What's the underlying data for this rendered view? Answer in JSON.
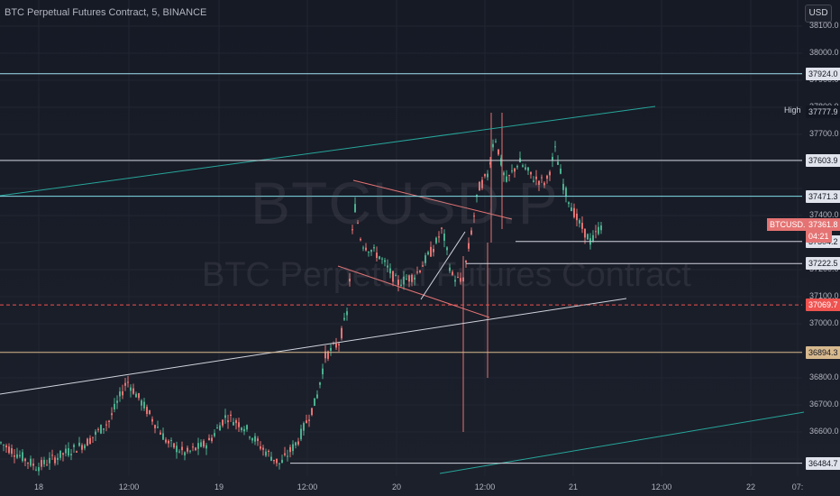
{
  "header": {
    "symbol_title": "BTC Perpetual Futures Contract, 5, BINANCE",
    "currency": "USD"
  },
  "watermark": {
    "ticker": "BTCUSD.P",
    "name": "BTC Perpetual Futures Contract"
  },
  "price_axis": {
    "ticks": [
      "38000.0",
      "37900.0",
      "37800.0",
      "37700.0",
      "37400.0",
      "37200.0",
      "37100.0",
      "37000.0",
      "36800.0",
      "36700.0",
      "36600.0",
      "38100.0"
    ]
  },
  "horizontal_levels": [
    {
      "price": 37924.0,
      "label": "37924.0",
      "color": "#a3e2f0"
    },
    {
      "price": 37603.9,
      "label": "37603.9",
      "color": "#d1d4dc"
    },
    {
      "price": 37471.3,
      "label": "37471.3",
      "color": "#80deea"
    },
    {
      "price": 37304.2,
      "label": "37304.2",
      "color": "#d1d4dc"
    },
    {
      "price": 37222.5,
      "label": "37222.5",
      "color": "#d1d4dc"
    },
    {
      "price": 37069.7,
      "label": "37069.7",
      "color": "#ef5350"
    },
    {
      "price": 36894.3,
      "label": "36894.3",
      "color": "#d7b98e"
    },
    {
      "price": 36484.7,
      "label": "36484.7",
      "color": "#d1d4dc"
    }
  ],
  "high": {
    "label": "High",
    "value": "37777.9"
  },
  "last_price": {
    "symbol": "BTCUSD.P",
    "value": "37361.8",
    "countdown": "04:21"
  },
  "time_axis": {
    "labels": [
      "18",
      "12:00",
      "19",
      "12:00",
      "20",
      "12:00",
      "21",
      "12:00",
      "22",
      "07:"
    ]
  }
}
